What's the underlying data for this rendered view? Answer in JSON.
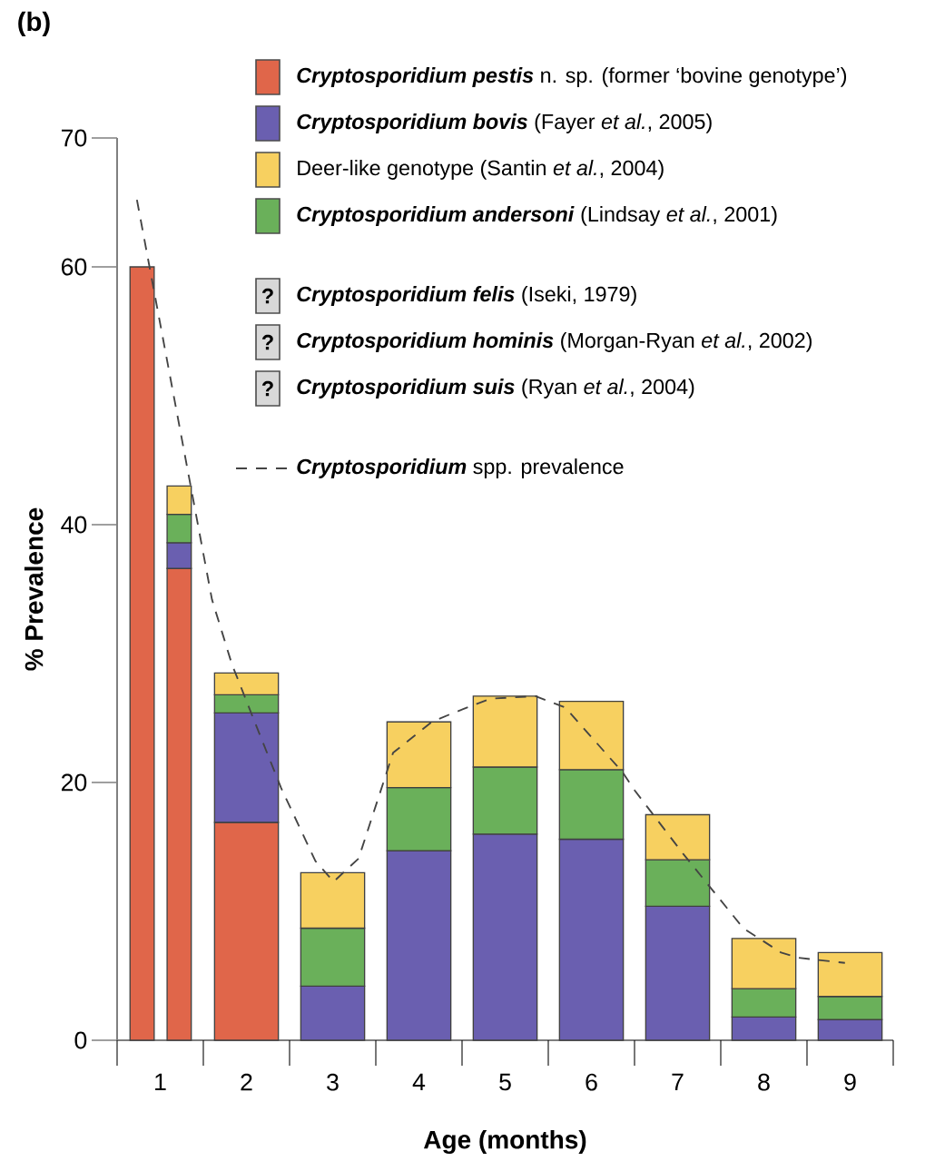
{
  "chart_data": {
    "type": "bar",
    "stacked": true,
    "xlabel": "Age (months)",
    "ylabel": "% Prevalence",
    "x": [
      0.79,
      1.22,
      2,
      3,
      4,
      5,
      6,
      7,
      8,
      9
    ],
    "xlim": [
      0.5,
      9.5
    ],
    "xticks": [
      1,
      2,
      3,
      4,
      5,
      6,
      7,
      8,
      9
    ],
    "ylim": [
      0,
      70
    ],
    "yticks": [
      0,
      20,
      40,
      60,
      70
    ],
    "legend": "top right",
    "series": [
      {
        "name": "**Cryptosporidium pestis** n. sp. (former ‘bovine genotype’)",
        "color": "#e0664a",
        "values": [
          60,
          36.6,
          16.9,
          null,
          null,
          null,
          null,
          null,
          null,
          null
        ]
      },
      {
        "name": "**Cryptosporidium bovis** (Fayer *et al.*, 2005)",
        "color": "#6a5fb0",
        "values": [
          null,
          2.0,
          8.5,
          4.2,
          14.7,
          16.0,
          15.6,
          10.4,
          1.8,
          1.6
        ]
      },
      {
        "name": "**Cryptosporidium andersoni** (Lindsay *et al.*, 2001)",
        "color": "#6ab05a",
        "values": [
          null,
          2.2,
          1.4,
          4.5,
          4.9,
          5.2,
          5.4,
          3.6,
          2.2,
          1.8
        ]
      },
      {
        "name": "Deer-like genotype (Santin *et al.*, 2004)",
        "color": "#f7d060",
        "values": [
          null,
          2.2,
          1.7,
          4.3,
          5.1,
          5.5,
          5.3,
          3.5,
          3.9,
          3.4
        ]
      },
      {
        "name": "**Cryptosporidium felis** (Iseki, 1979)",
        "color": "#d8d8d8",
        "values": [
          null,
          null,
          null,
          null,
          null,
          null,
          null,
          null,
          null,
          null
        ]
      },
      {
        "name": "**Cryptosporidium hominis** (Morgan-Ryan *et al.*, 2002)",
        "color": "#d8d8d8",
        "values": [
          null,
          null,
          null,
          null,
          null,
          null,
          null,
          null,
          null,
          null
        ]
      },
      {
        "name": "**Cryptosporidium suis** (Ryan *et al.*, 2004)",
        "color": "#d8d8d8",
        "values": [
          null,
          null,
          null,
          null,
          null,
          null,
          null,
          null,
          null,
          null
        ]
      },
      {
        "name": "**Cryptosporidium** spp. prevalence",
        "type": "line",
        "line_style": "dashed",
        "color": "#444444",
        "x": [
          0.73,
          1.6,
          1.83,
          2.06,
          2.4,
          2.8,
          3.01,
          3.3,
          3.7,
          4.15,
          4.4,
          4.83,
          5.35,
          5.7,
          6.36,
          6.5,
          7.06,
          7.76,
          8.2,
          8.4,
          8.94
        ],
        "values": [
          65.2,
          34.2,
          29.2,
          25.3,
          19.6,
          13.9,
          12.3,
          14.1,
          22.3,
          24.7,
          25.4,
          26.5,
          26.7,
          25.8,
          20.8,
          19.4,
          14.5,
          8.7,
          6.8,
          6.4,
          6.0
        ]
      }
    ],
    "annotations": [
      "(b)",
      "?",
      "?",
      "?"
    ]
  }
}
